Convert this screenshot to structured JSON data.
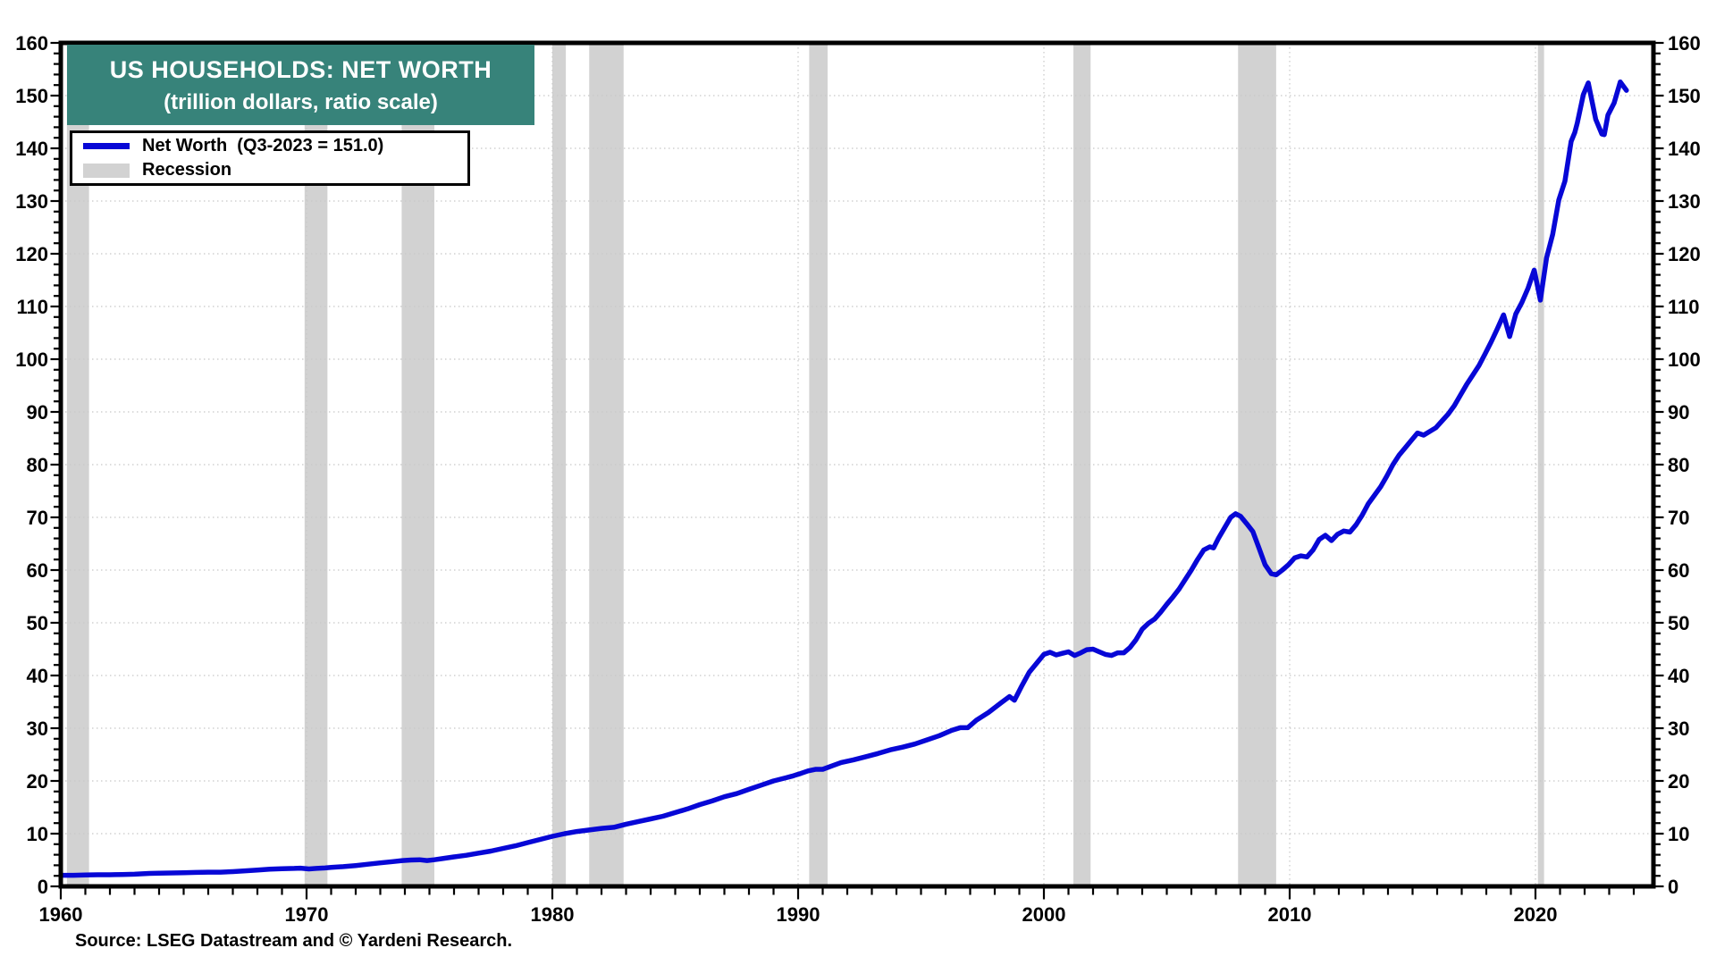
{
  "header": {
    "title_line1": "US HOUSEHOLDS: NET WORTH",
    "title_line2": "(trillion dollars, ratio scale)"
  },
  "legend": {
    "series_label": "Net Worth  (Q3-2023 = 151.0)",
    "recession_label": "Recession"
  },
  "footer": {
    "source": "Source: LSEG Datastream and © Yardeni Research."
  },
  "colors": {
    "line": "#0707d6",
    "recession_band": "#d2d2d2",
    "title_bg": "#37837a",
    "grid": "#c8c8c8",
    "axis": "#000000",
    "background": "#ffffff"
  },
  "chart_data": {
    "type": "line",
    "title": "US HOUSEHOLDS: NET WORTH (trillion dollars, ratio scale)",
    "xlabel": "",
    "ylabel": "trillion dollars",
    "xlim": [
      1960,
      2024.8
    ],
    "ylim": [
      0,
      160
    ],
    "y_tick_step": 10,
    "y_minor_tick_step": 2,
    "y_axis_sides": "both",
    "x_major_ticks": [
      1960,
      1970,
      1980,
      1990,
      2000,
      2010,
      2020
    ],
    "x_minor_tick_step": 1,
    "grid": "dotted, horizontal every 10, vertical every decade",
    "legend_position": "top-left",
    "recessions": [
      [
        1960.25,
        1961.15
      ],
      [
        1969.92,
        1970.85
      ],
      [
        1973.87,
        1975.2
      ],
      [
        1980.0,
        1980.55
      ],
      [
        1981.5,
        1982.9
      ],
      [
        1990.45,
        1991.2
      ],
      [
        2001.2,
        2001.9
      ],
      [
        2007.9,
        2009.45
      ],
      [
        2020.1,
        2020.35
      ]
    ],
    "series": [
      {
        "name": "Net Worth",
        "last_point_label": "Q3-2023 = 151.0",
        "points": [
          [
            1960.0,
            2.1
          ],
          [
            1960.5,
            2.1
          ],
          [
            1961.0,
            2.15
          ],
          [
            1961.5,
            2.2
          ],
          [
            1962.0,
            2.2
          ],
          [
            1962.5,
            2.25
          ],
          [
            1963.0,
            2.3
          ],
          [
            1963.6,
            2.45
          ],
          [
            1964.0,
            2.5
          ],
          [
            1964.5,
            2.55
          ],
          [
            1965.0,
            2.6
          ],
          [
            1965.5,
            2.65
          ],
          [
            1966.0,
            2.7
          ],
          [
            1966.5,
            2.7
          ],
          [
            1967.0,
            2.8
          ],
          [
            1967.5,
            2.95
          ],
          [
            1968.0,
            3.1
          ],
          [
            1968.5,
            3.25
          ],
          [
            1969.0,
            3.35
          ],
          [
            1969.5,
            3.4
          ],
          [
            1969.75,
            3.45
          ],
          [
            1970.1,
            3.3
          ],
          [
            1970.4,
            3.4
          ],
          [
            1970.75,
            3.5
          ],
          [
            1971.0,
            3.6
          ],
          [
            1971.5,
            3.75
          ],
          [
            1972.0,
            3.95
          ],
          [
            1972.5,
            4.2
          ],
          [
            1973.0,
            4.45
          ],
          [
            1973.5,
            4.7
          ],
          [
            1973.9,
            4.9
          ],
          [
            1974.25,
            5.0
          ],
          [
            1974.6,
            5.05
          ],
          [
            1974.9,
            4.9
          ],
          [
            1975.2,
            5.05
          ],
          [
            1975.5,
            5.25
          ],
          [
            1976.0,
            5.6
          ],
          [
            1976.5,
            5.9
          ],
          [
            1977.0,
            6.3
          ],
          [
            1977.5,
            6.7
          ],
          [
            1978.0,
            7.2
          ],
          [
            1978.5,
            7.7
          ],
          [
            1979.0,
            8.3
          ],
          [
            1979.5,
            8.9
          ],
          [
            1980.0,
            9.5
          ],
          [
            1980.5,
            10.0
          ],
          [
            1981.0,
            10.4
          ],
          [
            1981.5,
            10.7
          ],
          [
            1982.0,
            11.0
          ],
          [
            1982.5,
            11.2
          ],
          [
            1983.0,
            11.8
          ],
          [
            1983.5,
            12.3
          ],
          [
            1984.0,
            12.8
          ],
          [
            1984.5,
            13.3
          ],
          [
            1985.0,
            14.0
          ],
          [
            1985.5,
            14.7
          ],
          [
            1986.0,
            15.5
          ],
          [
            1986.5,
            16.2
          ],
          [
            1987.0,
            17.0
          ],
          [
            1987.5,
            17.6
          ],
          [
            1988.0,
            18.4
          ],
          [
            1988.5,
            19.2
          ],
          [
            1989.0,
            20.0
          ],
          [
            1989.5,
            20.6
          ],
          [
            1989.75,
            20.9
          ],
          [
            1990.1,
            21.4
          ],
          [
            1990.4,
            21.9
          ],
          [
            1990.7,
            22.2
          ],
          [
            1991.0,
            22.2
          ],
          [
            1991.4,
            22.9
          ],
          [
            1991.75,
            23.5
          ],
          [
            1992.25,
            24.0
          ],
          [
            1992.75,
            24.6
          ],
          [
            1993.25,
            25.2
          ],
          [
            1993.75,
            25.9
          ],
          [
            1994.25,
            26.4
          ],
          [
            1994.75,
            27.0
          ],
          [
            1995.25,
            27.8
          ],
          [
            1995.75,
            28.6
          ],
          [
            1996.25,
            29.6
          ],
          [
            1996.6,
            30.1
          ],
          [
            1996.9,
            30.1
          ],
          [
            1997.25,
            31.5
          ],
          [
            1997.75,
            33.0
          ],
          [
            1998.25,
            34.8
          ],
          [
            1998.6,
            36.0
          ],
          [
            1998.8,
            35.3
          ],
          [
            1999.1,
            38.0
          ],
          [
            1999.4,
            40.6
          ],
          [
            1999.7,
            42.3
          ],
          [
            2000.0,
            44.0
          ],
          [
            2000.25,
            44.4
          ],
          [
            2000.5,
            43.9
          ],
          [
            2000.75,
            44.2
          ],
          [
            2001.0,
            44.5
          ],
          [
            2001.25,
            43.8
          ],
          [
            2001.5,
            44.3
          ],
          [
            2001.75,
            44.9
          ],
          [
            2002.0,
            45.0
          ],
          [
            2002.25,
            44.5
          ],
          [
            2002.5,
            44.0
          ],
          [
            2002.75,
            43.8
          ],
          [
            2003.0,
            44.3
          ],
          [
            2003.25,
            44.3
          ],
          [
            2003.5,
            45.3
          ],
          [
            2003.75,
            46.8
          ],
          [
            2004.0,
            48.8
          ],
          [
            2004.25,
            49.9
          ],
          [
            2004.5,
            50.7
          ],
          [
            2004.75,
            52.0
          ],
          [
            2005.0,
            53.5
          ],
          [
            2005.25,
            54.9
          ],
          [
            2005.5,
            56.4
          ],
          [
            2005.75,
            58.2
          ],
          [
            2006.0,
            60.0
          ],
          [
            2006.25,
            62.0
          ],
          [
            2006.5,
            63.8
          ],
          [
            2006.75,
            64.4
          ],
          [
            2006.9,
            64.2
          ],
          [
            2007.1,
            66.0
          ],
          [
            2007.35,
            68.0
          ],
          [
            2007.6,
            70.0
          ],
          [
            2007.8,
            70.7
          ],
          [
            2008.0,
            70.2
          ],
          [
            2008.25,
            68.8
          ],
          [
            2008.5,
            67.3
          ],
          [
            2008.75,
            64.2
          ],
          [
            2009.0,
            61.0
          ],
          [
            2009.25,
            59.3
          ],
          [
            2009.45,
            59.1
          ],
          [
            2009.7,
            60.0
          ],
          [
            2009.95,
            61.0
          ],
          [
            2010.2,
            62.3
          ],
          [
            2010.45,
            62.7
          ],
          [
            2010.7,
            62.5
          ],
          [
            2010.95,
            63.8
          ],
          [
            2011.2,
            65.8
          ],
          [
            2011.45,
            66.6
          ],
          [
            2011.7,
            65.6
          ],
          [
            2011.95,
            66.8
          ],
          [
            2012.2,
            67.4
          ],
          [
            2012.45,
            67.2
          ],
          [
            2012.7,
            68.6
          ],
          [
            2012.95,
            70.4
          ],
          [
            2013.2,
            72.6
          ],
          [
            2013.45,
            74.2
          ],
          [
            2013.7,
            75.8
          ],
          [
            2013.95,
            77.8
          ],
          [
            2014.2,
            80.0
          ],
          [
            2014.45,
            81.8
          ],
          [
            2014.7,
            83.2
          ],
          [
            2014.95,
            84.6
          ],
          [
            2015.2,
            86.0
          ],
          [
            2015.45,
            85.6
          ],
          [
            2015.7,
            86.3
          ],
          [
            2015.95,
            87.0
          ],
          [
            2016.2,
            88.3
          ],
          [
            2016.45,
            89.6
          ],
          [
            2016.7,
            91.2
          ],
          [
            2016.95,
            93.2
          ],
          [
            2017.2,
            95.2
          ],
          [
            2017.45,
            97.0
          ],
          [
            2017.7,
            98.8
          ],
          [
            2017.95,
            101.0
          ],
          [
            2018.2,
            103.3
          ],
          [
            2018.45,
            105.8
          ],
          [
            2018.7,
            108.4
          ],
          [
            2018.95,
            104.3
          ],
          [
            2019.2,
            108.6
          ],
          [
            2019.45,
            110.8
          ],
          [
            2019.7,
            113.5
          ],
          [
            2019.95,
            116.9
          ],
          [
            2020.2,
            111.2
          ],
          [
            2020.45,
            119.2
          ],
          [
            2020.7,
            123.7
          ],
          [
            2020.95,
            130.2
          ],
          [
            2021.2,
            133.8
          ],
          [
            2021.45,
            141.3
          ],
          [
            2021.6,
            143.0
          ],
          [
            2021.7,
            144.8
          ],
          [
            2021.95,
            150.2
          ],
          [
            2022.15,
            152.4
          ],
          [
            2022.45,
            145.5
          ],
          [
            2022.7,
            142.7
          ],
          [
            2022.8,
            142.6
          ],
          [
            2022.95,
            146.3
          ],
          [
            2023.2,
            148.6
          ],
          [
            2023.45,
            152.6
          ],
          [
            2023.7,
            151.0
          ]
        ]
      }
    ]
  }
}
